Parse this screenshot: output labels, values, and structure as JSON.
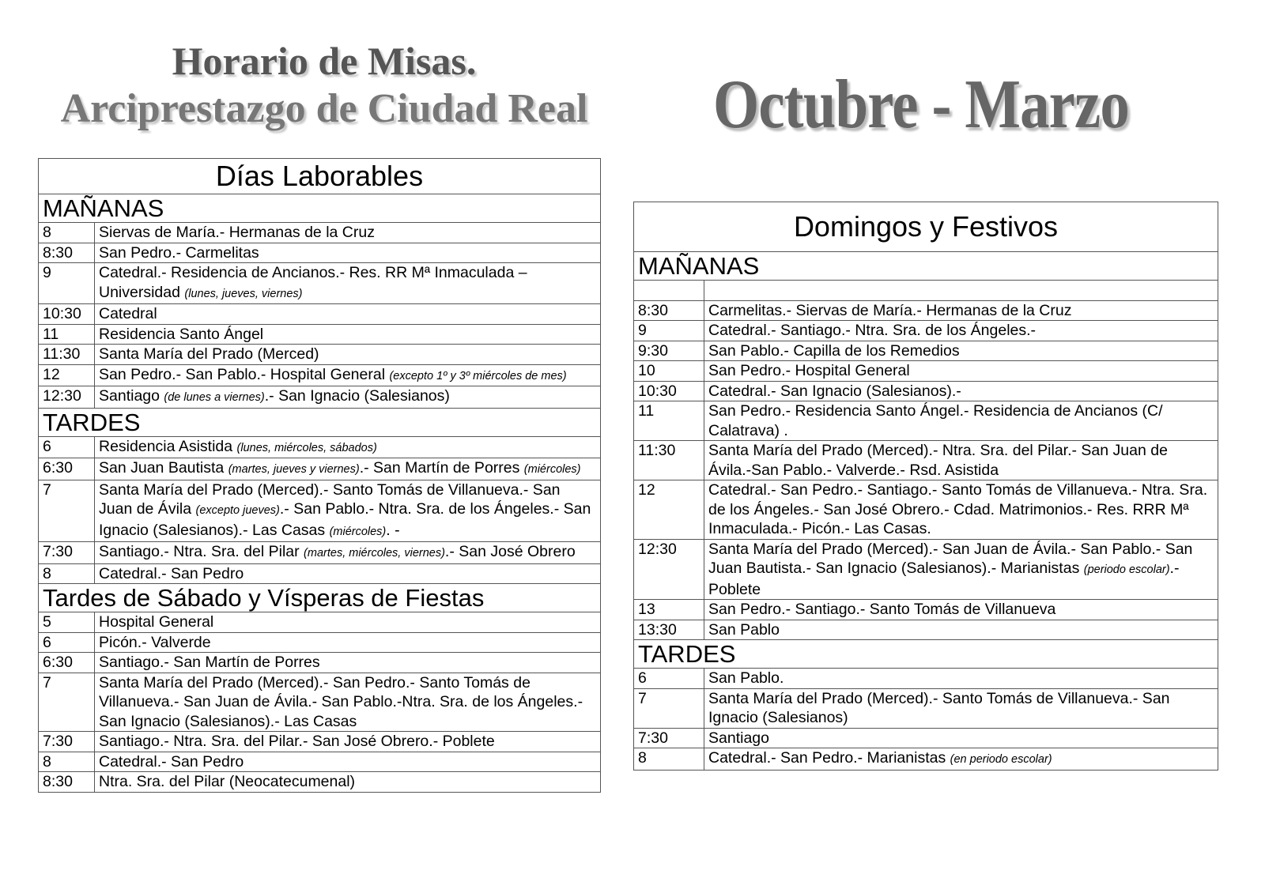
{
  "header": {
    "title": "Horario de Misas.",
    "subtitle": "Arciprestazgo de Ciudad Real",
    "period": "Octubre - Marzo"
  },
  "weekdays": {
    "title": "Días Laborables",
    "sections": [
      {
        "name": "MAÑANAS",
        "rows": [
          {
            "time": "8",
            "text": [
              "Siervas de María.- Hermanas de la Cruz"
            ]
          },
          {
            "time": "8:30",
            "text": [
              "San Pedro.- Carmelitas"
            ]
          },
          {
            "time": "9",
            "text": [
              "Catedral.- Residencia  de Ancianos.- Res. RR Mª Inmaculada – Universidad ",
              {
                "note": "(lunes, jueves, viernes)"
              }
            ]
          },
          {
            "time": "10:30",
            "text": [
              "Catedral"
            ]
          },
          {
            "time": "11",
            "text": [
              "Residencia Santo Ángel"
            ]
          },
          {
            "time": "11:30",
            "text": [
              "Santa María del Prado (Merced)"
            ]
          },
          {
            "time": "12",
            "text": [
              "San Pedro.- San Pablo.- Hospital General ",
              {
                "note": "(excepto 1º y 3º miércoles de mes)"
              }
            ]
          },
          {
            "time": "12:30",
            "text": [
              "Santiago ",
              {
                "note": "(de lunes a viernes)"
              },
              ".- San Ignacio (Salesianos)"
            ]
          }
        ]
      },
      {
        "name": "TARDES",
        "rows": [
          {
            "time": "6",
            "text": [
              "Residencia Asistida ",
              {
                "note": "(lunes, miércoles, sábados)"
              }
            ]
          },
          {
            "time": "6:30",
            "text": [
              "San Juan Bautista ",
              {
                "note": "(martes, jueves y viernes)"
              },
              ".- San Martín de Porres ",
              {
                "note": "(miércoles)"
              }
            ]
          },
          {
            "time": "7",
            "text": [
              "Santa María del Prado (Merced).- Santo Tomás de Villanueva.- San Juan de Ávila ",
              {
                "note": "(excepto jueves)"
              },
              ".- San Pablo.- Ntra. Sra. de los Ángeles.- San Ignacio (Salesianos).-  Las Casas ",
              {
                "note": "(miércoles)"
              },
              ". -"
            ]
          },
          {
            "time": "7:30",
            "text": [
              "Santiago.- Ntra. Sra. del Pilar ",
              {
                "note": "(martes, miércoles, viernes)"
              },
              ".- San José Obrero"
            ]
          },
          {
            "time": "8",
            "text": [
              "Catedral.- San Pedro"
            ]
          }
        ]
      },
      {
        "name": "Tardes de Sábado y Vísperas de Fiestas",
        "rows": [
          {
            "time": "5",
            "text": [
              "Hospital General"
            ]
          },
          {
            "time": "6",
            "text": [
              "Picón.- Valverde"
            ]
          },
          {
            "time": "6:30",
            "text": [
              "Santiago.- San Martín de Porres"
            ]
          },
          {
            "time": "7",
            "text": [
              "Santa María del Prado (Merced).- San Pedro.- Santo Tomás de Villanueva.- San Juan de Ávila.- San Pablo.-Ntra. Sra. de los Ángeles.- San Ignacio (Salesianos).- Las Casas"
            ]
          },
          {
            "time": "7:30",
            "text": [
              "Santiago.- Ntra. Sra. del Pilar.- San José Obrero.- Poblete"
            ]
          },
          {
            "time": "8",
            "text": [
              "Catedral.- San Pedro"
            ]
          },
          {
            "time": "8:30",
            "text": [
              "Ntra. Sra. del Pilar (Neocatecumenal)"
            ]
          }
        ]
      }
    ]
  },
  "holidays": {
    "title": "Domingos y Festivos",
    "sections": [
      {
        "name": "MAÑANAS",
        "rows": [
          {
            "time": null,
            "text": []
          },
          {
            "time": "8:30",
            "text": [
              "Carmelitas.- Siervas de María.- Hermanas de la Cruz"
            ]
          },
          {
            "time": "9",
            "text": [
              "Catedral.- Santiago.- Ntra. Sra. de los Ángeles.-"
            ]
          },
          {
            "time": "9:30",
            "text": [
              "San Pablo.- Capilla de los Remedios"
            ]
          },
          {
            "time": "10",
            "text": [
              "San Pedro.- Hospital General"
            ]
          },
          {
            "time": "10:30",
            "text": [
              "Catedral.- San Ignacio (Salesianos).-"
            ]
          },
          {
            "time": "11",
            "text": [
              "San Pedro.- Residencia Santo Ángel.- Residencia de Ancianos (C/ Calatrava) ."
            ]
          },
          {
            "time": "11:30",
            "text": [
              "Santa María del Prado (Merced).- Ntra. Sra. del Pilar.- San Juan de Ávila.-San Pablo.- Valverde.-  Rsd. Asistida"
            ]
          },
          {
            "time": "12",
            "text": [
              "Catedral.- San Pedro.- Santiago.- Santo Tomás de Villanueva.- Ntra. Sra. de los Ángeles.- San José Obrero.- Cdad. Matrimonios.- Res. RRR Mª Inmaculada.- Picón.- Las Casas."
            ]
          },
          {
            "time": "12:30",
            "text": [
              "Santa María del Prado (Merced).- San Juan de Ávila.- San Pablo.- San Juan Bautista.- San Ignacio (Salesianos).- Marianistas ",
              {
                "note": "(periodo escolar)"
              },
              ".- Poblete"
            ]
          },
          {
            "time": "13",
            "text": [
              "San Pedro.- Santiago.- Santo Tomás de Villanueva"
            ]
          },
          {
            "time": "13:30",
            "text": [
              "San Pablo"
            ]
          }
        ]
      },
      {
        "name": "TARDES",
        "rows": [
          {
            "time": "6",
            "text": [
              "San Pablo."
            ]
          },
          {
            "time": "7",
            "text": [
              "Santa María del Prado (Merced).- Santo Tomás de Villanueva.- San Ignacio (Salesianos)"
            ]
          },
          {
            "time": "7:30",
            "text": [
              "Santiago"
            ]
          },
          {
            "time": "8",
            "text": [
              "Catedral.- San Pedro.- Marianistas ",
              {
                "note": "(en periodo escolar)"
              }
            ]
          }
        ]
      }
    ]
  }
}
